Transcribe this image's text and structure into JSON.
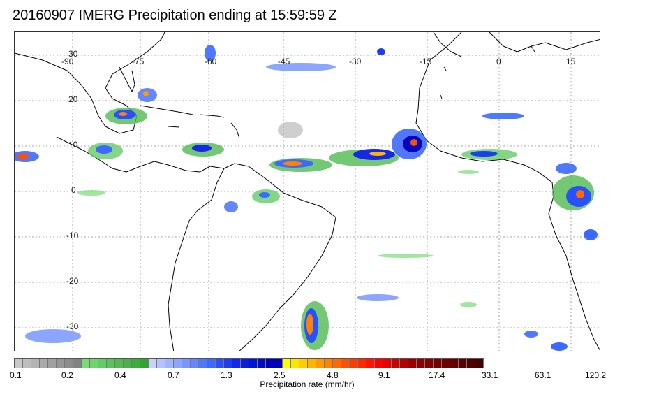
{
  "title": "20160907 IMERG Precipitation ending at 15:59:59 Z",
  "map": {
    "lon_labels": [
      "-90",
      "-75",
      "-60",
      "-45",
      "-30",
      "-15",
      "0",
      "15"
    ],
    "lat_labels": [
      "30",
      "20",
      "10",
      "0",
      "-10",
      "-20",
      "-30"
    ]
  },
  "colorbar": {
    "caption": "Precipitation rate (mm/hr)",
    "tick_labels": [
      "0.1",
      "0.2",
      "0.4",
      "0.7",
      "1.3",
      "2.5",
      "4.8",
      "9.1",
      "17.4",
      "33.1",
      "63.1",
      "120.2"
    ],
    "colors": [
      "#c8c8c8",
      "#bebebe",
      "#b4b4b4",
      "#aaaaaa",
      "#a0a0a0",
      "#969696",
      "#8c8c8c",
      "#828282",
      "#78dc78",
      "#6ed46e",
      "#64cc64",
      "#5ac45a",
      "#50bc50",
      "#46b446",
      "#3cac3c",
      "#32a432",
      "#c8d2ff",
      "#b4c3ff",
      "#a0b4ff",
      "#8ca5ff",
      "#7896ff",
      "#6487ff",
      "#5078ff",
      "#3c69ff",
      "#2850ff",
      "#1e3cf0",
      "#1428e6",
      "#0a1edc",
      "#0014d2",
      "#000ac8",
      "#0000be",
      "#0000b4",
      "#ffff00",
      "#ffe600",
      "#ffcd00",
      "#ffb400",
      "#ff9b00",
      "#ff8200",
      "#ff6900",
      "#ff5000",
      "#ff3c00",
      "#ff2800",
      "#ff1400",
      "#ff0000",
      "#e60000",
      "#cd0000",
      "#b40000",
      "#9b0000",
      "#8c0000",
      "#820000",
      "#780000",
      "#6e0000",
      "#640000",
      "#5a0000",
      "#500000",
      "#460000"
    ]
  }
}
